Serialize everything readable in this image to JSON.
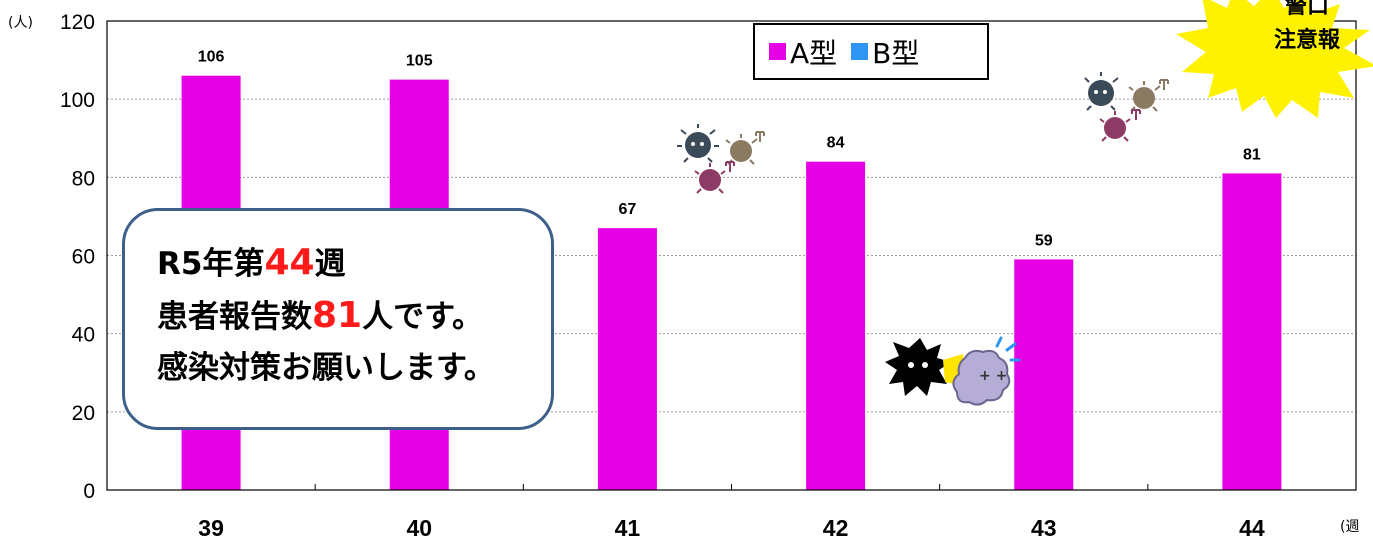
{
  "chart_data": {
    "type": "bar",
    "categories": [
      "39",
      "40",
      "41",
      "42",
      "43",
      "44"
    ],
    "series": [
      {
        "name": "A型",
        "color": "#e600e6",
        "values": [
          106,
          105,
          67,
          84,
          59,
          81
        ]
      },
      {
        "name": "B型",
        "color": "#2f95f2",
        "values": [
          null,
          null,
          null,
          null,
          null,
          null
        ]
      }
    ],
    "ylabel": "(人)",
    "xlabel": "(週",
    "ylim": [
      0,
      120
    ],
    "yticks": [
      0,
      20,
      40,
      60,
      80,
      100,
      120
    ],
    "grid": true,
    "legend_position": "top-right"
  },
  "callout": {
    "line1_pre": "R5年第",
    "line1_num": "44",
    "line1_post": "週",
    "line2_pre": "患者報告数",
    "line2_num": "81",
    "line2_post": "人です。",
    "line3": "感染対策お願いします。",
    "accent_color": "#ff1a1a"
  },
  "badge": {
    "line1": "警口",
    "line2": "注意報",
    "color": "#fff200"
  },
  "icons": [
    "germ-cluster-icon",
    "germ-cluster-icon",
    "germ-fight-icon"
  ]
}
